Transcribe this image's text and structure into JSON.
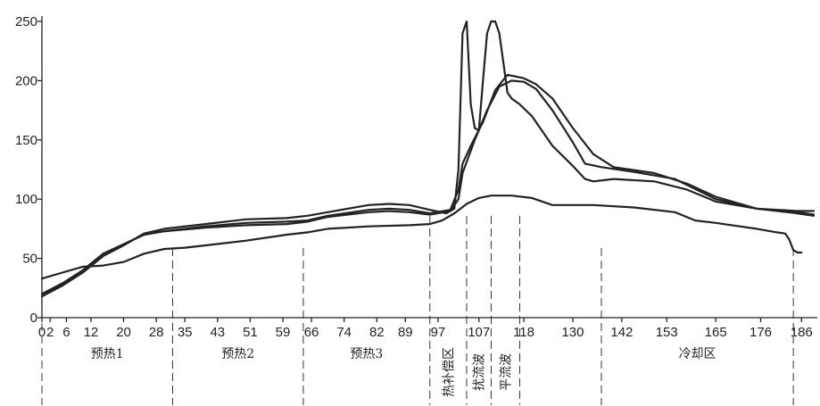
{
  "chart_data": {
    "type": "line",
    "title": "",
    "xlabel": "",
    "ylabel": "",
    "xlim": [
      0,
      189
    ],
    "ylim": [
      0,
      250
    ],
    "y_ticks": [
      0,
      50,
      100,
      150,
      200,
      250
    ],
    "x_ticks": [
      0,
      2,
      6,
      12,
      20,
      28,
      35,
      43,
      51,
      59,
      66,
      74,
      82,
      89,
      97,
      107,
      118,
      130,
      142,
      153,
      165,
      176,
      186
    ],
    "grid": false,
    "zone_boundaries": [
      0,
      32,
      64,
      95,
      104,
      110,
      117,
      137,
      184
    ],
    "zones": [
      {
        "label": "预热1",
        "from": 0,
        "to": 32
      },
      {
        "label": "预热2",
        "from": 32,
        "to": 64
      },
      {
        "label": "预热3",
        "from": 64,
        "to": 95
      },
      {
        "label": "热补偿区",
        "from": 95,
        "to": 104,
        "vertical": true
      },
      {
        "label": "扰流波",
        "from": 104,
        "to": 110,
        "vertical": true
      },
      {
        "label": "平流波",
        "from": 110,
        "to": 117,
        "vertical": true
      },
      {
        "label": "冷却区",
        "from": 137,
        "to": 184
      }
    ],
    "series": [
      {
        "values": [
          [
            0,
            33
          ],
          [
            5,
            38
          ],
          [
            10,
            43
          ],
          [
            15,
            44
          ],
          [
            20,
            47
          ],
          [
            25,
            54
          ],
          [
            30,
            58
          ],
          [
            35,
            59
          ],
          [
            40,
            61
          ],
          [
            50,
            65
          ],
          [
            60,
            70
          ],
          [
            65,
            72
          ],
          [
            70,
            75
          ],
          [
            80,
            77
          ],
          [
            90,
            78
          ],
          [
            95,
            79
          ],
          [
            98,
            82
          ],
          [
            101,
            88
          ],
          [
            104,
            96
          ],
          [
            107,
            101
          ],
          [
            110,
            103
          ],
          [
            115,
            103
          ],
          [
            120,
            101
          ],
          [
            125,
            95
          ],
          [
            135,
            95
          ],
          [
            145,
            93
          ],
          [
            155,
            89
          ],
          [
            160,
            82
          ],
          [
            165,
            80
          ],
          [
            175,
            75
          ],
          [
            180,
            72
          ],
          [
            182,
            71
          ],
          [
            183,
            66
          ],
          [
            184,
            57
          ],
          [
            185,
            55
          ],
          [
            186,
            55
          ]
        ]
      },
      {
        "values": [
          [
            0,
            20
          ],
          [
            5,
            29
          ],
          [
            10,
            40
          ],
          [
            15,
            54
          ],
          [
            20,
            62
          ],
          [
            25,
            70
          ],
          [
            30,
            73
          ],
          [
            40,
            76
          ],
          [
            50,
            78
          ],
          [
            60,
            79
          ],
          [
            65,
            81
          ],
          [
            70,
            85
          ],
          [
            80,
            89
          ],
          [
            85,
            90
          ],
          [
            90,
            89
          ],
          [
            95,
            87
          ],
          [
            100,
            90
          ],
          [
            102,
            100
          ],
          [
            103,
            122
          ],
          [
            106,
            150
          ],
          [
            109,
            175
          ],
          [
            112,
            195
          ],
          [
            115,
            200
          ],
          [
            118,
            199
          ],
          [
            121,
            193
          ],
          [
            125,
            175
          ],
          [
            130,
            148
          ],
          [
            133,
            130
          ],
          [
            137,
            127
          ],
          [
            145,
            123
          ],
          [
            155,
            117
          ],
          [
            165,
            100
          ],
          [
            175,
            92
          ],
          [
            185,
            89
          ],
          [
            189,
            87
          ]
        ]
      },
      {
        "values": [
          [
            0,
            18
          ],
          [
            5,
            27
          ],
          [
            10,
            38
          ],
          [
            15,
            52
          ],
          [
            20,
            61
          ],
          [
            25,
            71
          ],
          [
            30,
            75
          ],
          [
            40,
            79
          ],
          [
            50,
            83
          ],
          [
            60,
            84
          ],
          [
            65,
            86
          ],
          [
            70,
            89
          ],
          [
            80,
            95
          ],
          [
            85,
            96
          ],
          [
            90,
            95
          ],
          [
            95,
            91
          ],
          [
            99,
            88
          ],
          [
            101,
            92
          ],
          [
            102,
            125
          ],
          [
            103,
            240
          ],
          [
            104,
            250
          ],
          [
            105,
            180
          ],
          [
            106,
            160
          ],
          [
            107,
            158
          ],
          [
            108,
            200
          ],
          [
            109,
            240
          ],
          [
            110,
            250
          ],
          [
            111,
            250
          ],
          [
            112,
            240
          ],
          [
            113,
            215
          ],
          [
            114,
            190
          ],
          [
            115,
            185
          ],
          [
            117,
            180
          ],
          [
            120,
            170
          ],
          [
            125,
            145
          ],
          [
            130,
            128
          ],
          [
            133,
            117
          ],
          [
            135,
            115
          ],
          [
            140,
            117
          ],
          [
            150,
            115
          ],
          [
            158,
            108
          ],
          [
            165,
            98
          ],
          [
            175,
            92
          ],
          [
            185,
            88
          ],
          [
            189,
            86
          ]
        ]
      },
      {
        "values": [
          [
            0,
            18
          ],
          [
            5,
            28
          ],
          [
            10,
            40
          ],
          [
            15,
            54
          ],
          [
            20,
            62
          ],
          [
            25,
            70
          ],
          [
            30,
            73
          ],
          [
            40,
            77
          ],
          [
            50,
            80
          ],
          [
            60,
            81
          ],
          [
            65,
            82
          ],
          [
            70,
            86
          ],
          [
            80,
            91
          ],
          [
            85,
            92
          ],
          [
            90,
            91
          ],
          [
            95,
            88
          ],
          [
            100,
            91
          ],
          [
            102,
            108
          ],
          [
            103,
            130
          ],
          [
            105,
            145
          ],
          [
            108,
            165
          ],
          [
            111,
            192
          ],
          [
            114,
            205
          ],
          [
            118,
            202
          ],
          [
            121,
            197
          ],
          [
            125,
            185
          ],
          [
            130,
            160
          ],
          [
            135,
            138
          ],
          [
            140,
            127
          ],
          [
            150,
            122
          ],
          [
            158,
            113
          ],
          [
            165,
            102
          ],
          [
            175,
            92
          ],
          [
            185,
            90
          ],
          [
            189,
            90
          ]
        ]
      }
    ]
  }
}
